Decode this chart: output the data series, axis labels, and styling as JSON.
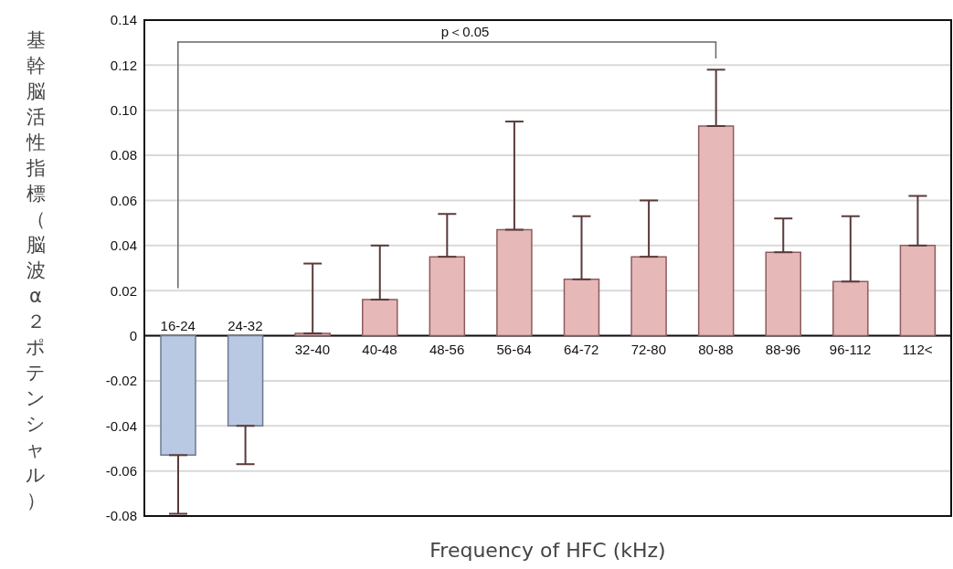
{
  "chart_data": {
    "type": "bar",
    "xlabel": "Frequency of HFC (kHz)",
    "ylabel": "基幹脳活性指標（脳波α２ポテンシャル）",
    "categories": [
      "16-24",
      "24-32",
      "32-40",
      "40-48",
      "48-56",
      "56-64",
      "64-72",
      "72-80",
      "80-88",
      "88-96",
      "96-112",
      "112<"
    ],
    "values": [
      -0.053,
      -0.04,
      0.001,
      0.016,
      0.035,
      0.047,
      0.025,
      0.035,
      0.093,
      0.037,
      0.024,
      0.04
    ],
    "errors": [
      [
        -0.079,
        -0.053
      ],
      [
        -0.057,
        -0.04
      ],
      [
        0.001,
        0.032
      ],
      [
        0.016,
        0.04
      ],
      [
        0.035,
        0.054
      ],
      [
        0.047,
        0.095
      ],
      [
        0.025,
        0.053
      ],
      [
        0.035,
        0.06
      ],
      [
        0.093,
        0.118
      ],
      [
        0.037,
        0.052
      ],
      [
        0.024,
        0.053
      ],
      [
        0.04,
        0.062
      ]
    ],
    "colors": [
      "#b9c9e3",
      "#b9c9e3",
      "#e6b9b8",
      "#e6b9b8",
      "#e6b9b8",
      "#e6b9b8",
      "#e6b9b8",
      "#e6b9b8",
      "#e6b9b8",
      "#e6b9b8",
      "#e6b9b8",
      "#e6b9b8"
    ],
    "ylim": [
      -0.08,
      0.14
    ],
    "yticks": [
      {
        "value": -0.08,
        "label": "-0.08"
      },
      {
        "value": -0.06,
        "label": "-0.06"
      },
      {
        "value": -0.04,
        "label": "-0.04"
      },
      {
        "value": -0.02,
        "label": "-0.02"
      },
      0,
      {
        "value": 0.02,
        "label": "0.02"
      },
      {
        "value": 0.04,
        "label": "0.04"
      },
      {
        "value": 0.06,
        "label": "0.06"
      },
      {
        "value": 0.08,
        "label": "0.08"
      },
      {
        "value": 0.1,
        "label": "0.10"
      },
      {
        "value": 0.12,
        "label": "0.12"
      },
      {
        "value": 0.14,
        "label": "0.14"
      }
    ],
    "annotations": [
      "p＜0.05"
    ],
    "grid": "y"
  }
}
